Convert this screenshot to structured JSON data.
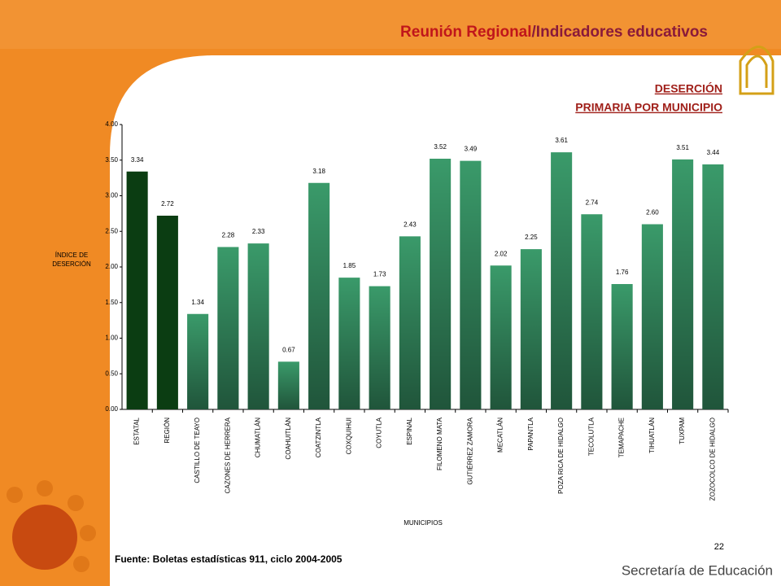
{
  "slide": {
    "title_a": "Reunión Regional",
    "title_b": "/Indicadores educativos",
    "heading_1": "DESERCIÓN",
    "heading_2": "PRIMARIA POR MUNICIPIO",
    "source": "Fuente: Boletas estadísticas 911, ciclo 2004-2005",
    "page": "22",
    "footer": "Secretaría de Educación"
  },
  "chart_data": {
    "type": "bar",
    "y_label": "ÍNDICE DE DESERCIÓN",
    "x_label": "MUNICIPIOS",
    "categories": [
      "ESTATAL",
      "REGIÓN",
      "CASTILLO DE TEAYO",
      "CAZONES DE HERRERA",
      "CHUMATLÁN",
      "COAHUITLÁN",
      "COATZINTLA",
      "COXQUIHUI",
      "COYUTLA",
      "ESPINAL",
      "FILOMENO MATA",
      "GUTIÉRREZ ZAMORA",
      "MECATLÁN",
      "PAPANTLA",
      "POZA RICA DE HIDALGO",
      "TECOLUTLA",
      "TEMAPACHE",
      "TIHUATLÁN",
      "TUXPAM",
      "ZOZOCOLCO DE HIDALGO"
    ],
    "values": [
      3.34,
      2.72,
      1.34,
      2.28,
      2.33,
      0.67,
      3.18,
      1.85,
      1.73,
      2.43,
      3.52,
      3.49,
      2.02,
      2.25,
      3.61,
      2.74,
      1.76,
      2.6,
      3.51,
      3.44
    ],
    "value_labels": [
      "3.34",
      "2.72",
      "1.34",
      "2.28",
      "2.33",
      "0.67",
      "3.18",
      "1.85",
      "1.73",
      "2.43",
      "3.52",
      "3.49",
      "2.02",
      "2.25",
      "3.61",
      "2.74",
      "1.76",
      "2.60",
      "3.51",
      "3.44"
    ],
    "colors": [
      "#0b3d12",
      "#0b3d12",
      "#3a9a6a",
      "#3a9a6a",
      "#3a9a6a",
      "#3a9a6a",
      "#3a9a6a",
      "#3a9a6a",
      "#3a9a6a",
      "#3a9a6a",
      "#3a9a6a",
      "#3a9a6a",
      "#3a9a6a",
      "#3a9a6a",
      "#3a9a6a",
      "#3a9a6a",
      "#3a9a6a",
      "#3a9a6a",
      "#3a9a6a",
      "#3a9a6a"
    ],
    "ylim": [
      0,
      4
    ],
    "yticks": [
      {
        "value": 0,
        "label": "0.00"
      },
      {
        "value": 0.5,
        "label": "0.50"
      },
      {
        "value": 1,
        "label": "1.00"
      },
      {
        "value": 1.5,
        "label": "1.50"
      },
      {
        "value": 2,
        "label": "2.00"
      },
      {
        "value": 2.5,
        "label": "2.50"
      },
      {
        "value": 3,
        "label": "3.00"
      },
      {
        "value": 3.5,
        "label": "3.50"
      },
      {
        "value": 4,
        "label": "4.00"
      }
    ]
  }
}
